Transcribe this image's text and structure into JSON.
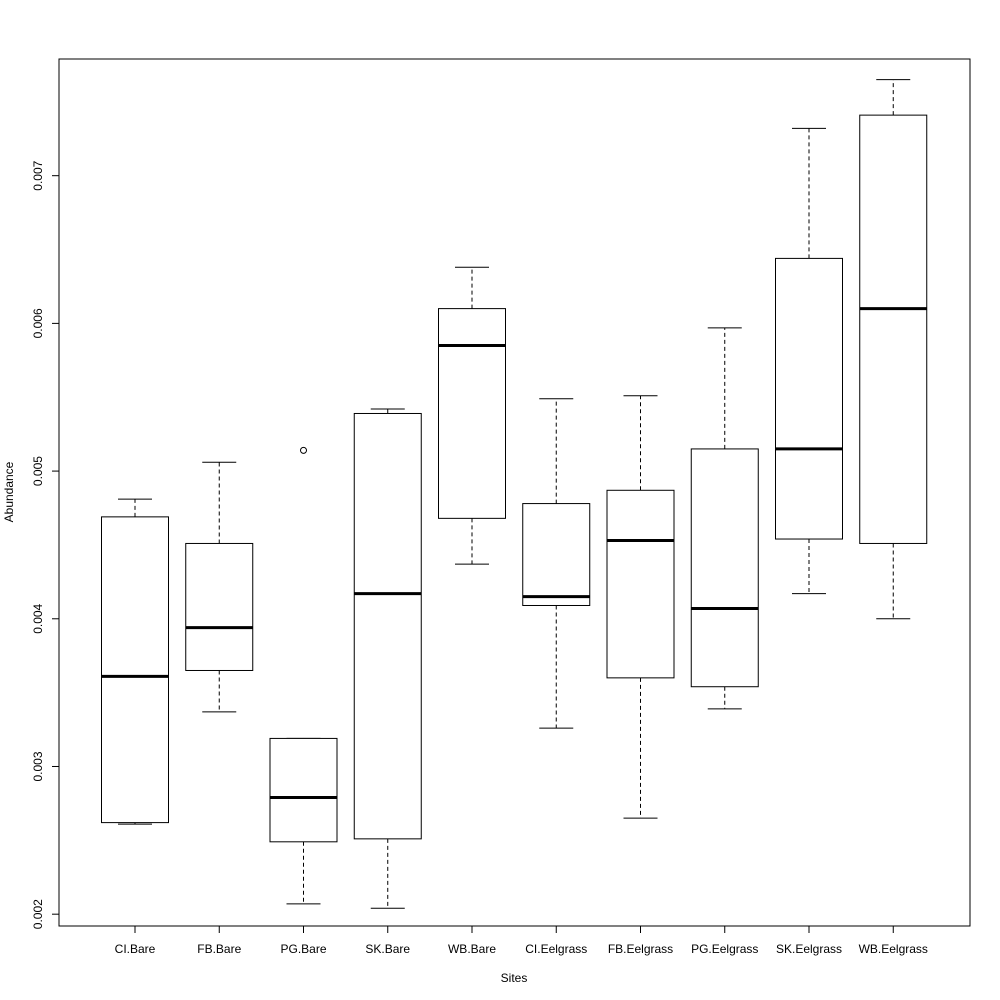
{
  "chart_data": {
    "type": "boxplot",
    "title": "",
    "xlabel": "Sites",
    "ylabel": "Abundance",
    "ylim": [
      0.00192,
      0.00779
    ],
    "yticks": [
      0.002,
      0.003,
      0.004,
      0.005,
      0.006,
      0.007
    ],
    "ytick_labels": [
      "0.002",
      "0.003",
      "0.004",
      "0.005",
      "0.006",
      "0.007"
    ],
    "grid": false,
    "categories": [
      "CI.Bare",
      "FB.Bare",
      "PG.Bare",
      "SK.Bare",
      "WB.Bare",
      "CI.Eelgrass",
      "FB.Eelgrass",
      "PG.Eelgrass",
      "SK.Eelgrass",
      "WB.Eelgrass"
    ],
    "boxes": [
      {
        "whisker_low": 0.00261,
        "q1": 0.00262,
        "median": 0.00361,
        "q3": 0.00469,
        "whisker_high": 0.00481,
        "outliers": []
      },
      {
        "whisker_low": 0.00337,
        "q1": 0.00365,
        "median": 0.00394,
        "q3": 0.00451,
        "whisker_high": 0.00506,
        "outliers": []
      },
      {
        "whisker_low": 0.00207,
        "q1": 0.00249,
        "median": 0.00279,
        "q3": 0.00319,
        "whisker_high": 0.00319,
        "outliers": [
          0.00514
        ]
      },
      {
        "whisker_low": 0.00204,
        "q1": 0.00251,
        "median": 0.00417,
        "q3": 0.00539,
        "whisker_high": 0.00542,
        "outliers": []
      },
      {
        "whisker_low": 0.00437,
        "q1": 0.00468,
        "median": 0.00585,
        "q3": 0.0061,
        "whisker_high": 0.00638,
        "outliers": []
      },
      {
        "whisker_low": 0.00326,
        "q1": 0.00409,
        "median": 0.00415,
        "q3": 0.00478,
        "whisker_high": 0.00549,
        "outliers": []
      },
      {
        "whisker_low": 0.00265,
        "q1": 0.0036,
        "median": 0.00453,
        "q3": 0.00487,
        "whisker_high": 0.00551,
        "outliers": []
      },
      {
        "whisker_low": 0.00339,
        "q1": 0.00354,
        "median": 0.00407,
        "q3": 0.00515,
        "whisker_high": 0.00597,
        "outliers": []
      },
      {
        "whisker_low": 0.00417,
        "q1": 0.00454,
        "median": 0.00515,
        "q3": 0.00644,
        "whisker_high": 0.00732,
        "outliers": []
      },
      {
        "whisker_low": 0.004,
        "q1": 0.00451,
        "median": 0.0061,
        "q3": 0.00741,
        "whisker_high": 0.00765,
        "outliers": []
      }
    ]
  }
}
